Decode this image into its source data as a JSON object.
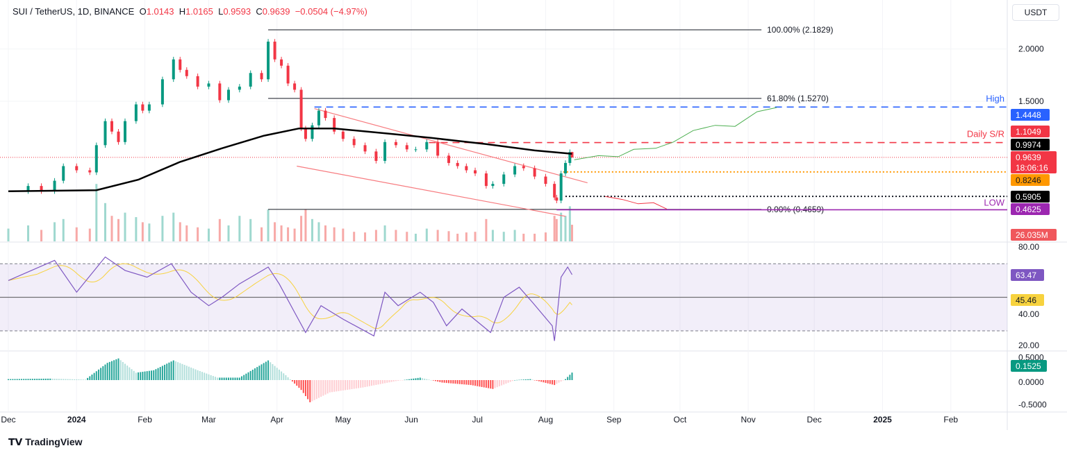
{
  "header": {
    "symbol": "SUI / TetherUS, 1D, BINANCE",
    "o_label": "O",
    "o": "1.0143",
    "h_label": "H",
    "h": "1.0165",
    "l_label": "L",
    "l": "0.9593",
    "c_label": "C",
    "c": "0.9639",
    "change": "−0.0504 (−4.97%)"
  },
  "currency_button": "USDT",
  "branding": "TradingView",
  "colors": {
    "up": "#089981",
    "down": "#f23645",
    "ma": "#000000",
    "rsi": "#7e57c2",
    "rsi_ma": "#f7d23e",
    "high": "#2962ff",
    "low": "#9c27b0",
    "sr": "#f23645",
    "orange": "#ff9800"
  },
  "chart_data": {
    "type": "candlestick",
    "price_scale": "linear",
    "grid": true,
    "dates": [
      "2023-12-01",
      "2023-12-10",
      "2023-12-16",
      "2023-12-22",
      "2023-12-26",
      "2024-01-01",
      "2024-01-07",
      "2024-01-10",
      "2024-01-14",
      "2024-01-17",
      "2024-01-20",
      "2024-01-23",
      "2024-01-28",
      "2024-01-31",
      "2024-02-03",
      "2024-02-09",
      "2024-02-14",
      "2024-02-17",
      "2024-02-20",
      "2024-02-25",
      "2024-03-01",
      "2024-03-06",
      "2024-03-10",
      "2024-03-15",
      "2024-03-20",
      "2024-03-25",
      "2024-03-28",
      "2024-03-31",
      "2024-04-03",
      "2024-04-06",
      "2024-04-09",
      "2024-04-12",
      "2024-04-14",
      "2024-04-17",
      "2024-04-20",
      "2024-04-23",
      "2024-04-27",
      "2024-05-01",
      "2024-05-06",
      "2024-05-11",
      "2024-05-16",
      "2024-05-20",
      "2024-05-25",
      "2024-05-30",
      "2024-06-03",
      "2024-06-08",
      "2024-06-13",
      "2024-06-18",
      "2024-06-22",
      "2024-06-26",
      "2024-06-30",
      "2024-07-05",
      "2024-07-08",
      "2024-07-13",
      "2024-07-18",
      "2024-07-22",
      "2024-07-27",
      "2024-08-01",
      "2024-08-05",
      "2024-08-06",
      "2024-08-08",
      "2024-08-10",
      "2024-08-12",
      "2024-08-13"
    ],
    "close": [
      0.64,
      0.69,
      0.64,
      0.74,
      0.88,
      0.84,
      0.82,
      1.08,
      1.31,
      1.21,
      1.11,
      1.31,
      1.47,
      1.41,
      1.47,
      1.71,
      1.9,
      1.8,
      1.74,
      1.64,
      1.67,
      1.51,
      1.61,
      1.64,
      1.77,
      1.71,
      2.07,
      1.9,
      1.84,
      1.67,
      1.61,
      1.24,
      1.14,
      1.27,
      1.41,
      1.34,
      1.21,
      1.14,
      1.08,
      1.02,
      0.93,
      1.11,
      1.08,
      1.04,
      1.04,
      1.11,
      0.98,
      0.91,
      0.88,
      0.84,
      0.81,
      0.69,
      0.71,
      0.8,
      0.88,
      0.86,
      0.78,
      0.71,
      0.58,
      0.55,
      0.81,
      0.91,
      1.0143,
      0.9639
    ],
    "last_candle": {
      "open": 1.0143,
      "high": 1.0165,
      "low": 0.9593,
      "close": 0.9639
    },
    "volume_m": [
      20,
      25,
      18,
      30,
      35,
      22,
      20,
      90,
      60,
      40,
      35,
      45,
      38,
      30,
      28,
      40,
      45,
      30,
      25,
      22,
      20,
      35,
      25,
      40,
      35,
      22,
      50,
      30,
      25,
      22,
      20,
      40,
      50,
      35,
      30,
      25,
      22,
      20,
      15,
      14,
      18,
      25,
      18,
      15,
      12,
      20,
      18,
      16,
      12,
      14,
      15,
      35,
      18,
      15,
      18,
      12,
      12,
      14,
      40,
      35,
      45,
      40,
      55,
      26.035
    ],
    "ma200": {
      "dates": [
        "2023-12-01",
        "2024-01-10",
        "2024-01-29",
        "2024-02-17",
        "2024-03-07",
        "2024-03-26",
        "2024-04-11",
        "2024-04-27",
        "2024-05-22",
        "2024-06-10",
        "2024-07-05",
        "2024-07-27",
        "2024-08-13"
      ],
      "values": [
        0.64,
        0.65,
        0.75,
        0.92,
        1.05,
        1.17,
        1.24,
        1.24,
        1.19,
        1.15,
        1.09,
        1.03,
        0.9974
      ]
    },
    "fib": [
      {
        "label": "100.00% (2.1829)",
        "price": 2.1829
      },
      {
        "label": "61.80% (1.5270)",
        "price": 1.527
      },
      {
        "label": "0.00% (0.4659)",
        "price": 0.4659
      }
    ],
    "fib_start": "2024-03-28",
    "fib_end": "2024-11-07",
    "levels": [
      {
        "name": "high",
        "label": "High",
        "price": 1.4448,
        "from": "2024-04-18",
        "style": "dashed",
        "color": "#2962ff"
      },
      {
        "name": "daily-sr",
        "label": "Daily S/R",
        "price": 1.1049,
        "from": "2024-06-09",
        "style": "dashed",
        "color": "#f23645"
      },
      {
        "name": "orange-dotted",
        "label": "",
        "price": 0.8246,
        "from": "2024-08-09",
        "style": "dotted",
        "color": "#ff9800"
      },
      {
        "name": "black-dotted",
        "label": "",
        "price": 0.5905,
        "from": "2024-08-10",
        "style": "dotted",
        "color": "#131722"
      },
      {
        "name": "low",
        "label": "LOW",
        "price": 0.4625,
        "from": "2024-08-06",
        "style": "solid",
        "color": "#9c27b0"
      }
    ],
    "channel": {
      "upper": [
        [
          "2024-04-18",
          1.43
        ],
        [
          "2024-08-20",
          0.72
        ]
      ],
      "lower": [
        [
          "2024-04-10",
          0.88
        ],
        [
          "2024-08-10",
          0.4
        ]
      ]
    },
    "projection_up": [
      [
        "2024-08-14",
        0.94
      ],
      [
        "2024-08-25",
        0.98
      ],
      [
        "2024-09-03",
        0.97
      ],
      [
        "2024-09-10",
        1.04
      ],
      [
        "2024-09-20",
        1.05
      ],
      [
        "2024-09-28",
        1.11
      ],
      [
        "2024-10-07",
        1.22
      ],
      [
        "2024-10-17",
        1.27
      ],
      [
        "2024-10-26",
        1.26
      ],
      [
        "2024-11-05",
        1.4
      ],
      [
        "2024-11-14",
        1.44
      ]
    ],
    "projection_down": [
      [
        "2024-08-28",
        0.59
      ],
      [
        "2024-09-05",
        0.56
      ],
      [
        "2024-09-12",
        0.52
      ],
      [
        "2024-09-19",
        0.53
      ],
      [
        "2024-09-25",
        0.47
      ]
    ],
    "price_ticks": [
      "2.0000",
      "1.5000"
    ],
    "price_tick_values": [
      2.0,
      1.5
    ],
    "badges": [
      {
        "name": "high-badge",
        "text": "1.4448",
        "bg": "#2962ff",
        "fg": "#ffffff"
      },
      {
        "name": "sr-badge",
        "text": "1.1049",
        "bg": "#f23645",
        "fg": "#ffffff"
      },
      {
        "name": "ma-badge",
        "text": "0.9974",
        "bg": "#000000",
        "fg": "#ffffff"
      },
      {
        "name": "last-price-badge",
        "text": "0.9639",
        "sub": "18:06:16",
        "bg": "#f23645",
        "fg": "#ffffff"
      },
      {
        "name": "orange-badge",
        "text": "0.8246",
        "bg": "#ff9800",
        "fg": "#131722"
      },
      {
        "name": "black-badge",
        "text": "0.5905",
        "bg": "#000000",
        "fg": "#ffffff"
      },
      {
        "name": "low-badge",
        "text": "0.4625",
        "bg": "#9c27b0",
        "fg": "#ffffff"
      },
      {
        "name": "volume-badge",
        "text": "26.035M",
        "bg": "#f0575c",
        "fg": "#ffffff"
      }
    ],
    "rsi": {
      "dates": [
        "2023-12-01",
        "2023-12-22",
        "2024-01-01",
        "2024-01-14",
        "2024-01-23",
        "2024-02-02",
        "2024-02-13",
        "2024-02-22",
        "2024-03-01",
        "2024-03-07",
        "2024-03-15",
        "2024-03-28",
        "2024-04-02",
        "2024-04-09",
        "2024-04-14",
        "2024-04-21",
        "2024-05-01",
        "2024-05-15",
        "2024-05-20",
        "2024-05-26",
        "2024-06-05",
        "2024-06-11",
        "2024-06-17",
        "2024-06-24",
        "2024-07-07",
        "2024-07-13",
        "2024-07-20",
        "2024-07-26",
        "2024-08-04",
        "2024-08-05",
        "2024-08-08",
        "2024-08-11",
        "2024-08-13"
      ],
      "values": [
        60,
        72,
        53,
        74,
        66,
        62,
        70,
        53,
        45,
        50,
        58,
        68,
        58,
        41,
        29,
        45,
        37,
        27,
        53,
        45,
        53,
        47,
        33,
        43,
        29,
        50,
        56,
        47,
        33,
        24,
        62,
        68,
        63.47
      ],
      "ticks": [
        "80.00",
        "60.00",
        "40.00",
        "20.00"
      ],
      "tick_values": [
        80,
        60,
        40,
        20
      ],
      "band": [
        30,
        70
      ],
      "mid": 50,
      "last": "63.47",
      "ma_last": "45.46"
    },
    "macd_hist": {
      "dates": [
        "2023-12-01",
        "2023-12-20",
        "2024-01-05",
        "2024-01-15",
        "2024-01-20",
        "2024-01-28",
        "2024-02-05",
        "2024-02-14",
        "2024-02-25",
        "2024-03-05",
        "2024-03-15",
        "2024-03-28",
        "2024-04-05",
        "2024-04-12",
        "2024-04-16",
        "2024-04-25",
        "2024-05-10",
        "2024-05-25",
        "2024-06-05",
        "2024-06-15",
        "2024-06-28",
        "2024-07-08",
        "2024-07-18",
        "2024-07-25",
        "2024-08-05",
        "2024-08-10",
        "2024-08-13"
      ],
      "values": [
        0.02,
        0.03,
        0.01,
        0.35,
        0.44,
        0.15,
        0.2,
        0.4,
        0.2,
        0.05,
        0.05,
        0.4,
        0.1,
        -0.2,
        -0.45,
        -0.25,
        -0.15,
        -0.02,
        0.05,
        -0.05,
        -0.1,
        -0.18,
        0.0,
        0.02,
        -0.1,
        0.02,
        0.1525
      ],
      "ticks": [
        "0.5000",
        "0.0000",
        "-0.5000"
      ],
      "tick_values": [
        0.5,
        0,
        -0.5
      ],
      "last": "0.1525"
    },
    "time_ticks": [
      {
        "label": "Dec",
        "date": "2023-12-01"
      },
      {
        "label": "2024",
        "date": "2024-01-01"
      },
      {
        "label": "Feb",
        "date": "2024-02-01"
      },
      {
        "label": "Mar",
        "date": "2024-03-01"
      },
      {
        "label": "Apr",
        "date": "2024-04-01"
      },
      {
        "label": "May",
        "date": "2024-05-01"
      },
      {
        "label": "Jun",
        "date": "2024-06-01"
      },
      {
        "label": "Jul",
        "date": "2024-07-01"
      },
      {
        "label": "Aug",
        "date": "2024-08-01"
      },
      {
        "label": "Sep",
        "date": "2024-09-01"
      },
      {
        "label": "Oct",
        "date": "2024-10-01"
      },
      {
        "label": "Nov",
        "date": "2024-11-01"
      },
      {
        "label": "Dec",
        "date": "2024-12-01"
      },
      {
        "label": "2025",
        "date": "2025-01-01"
      },
      {
        "label": "Feb",
        "date": "2025-02-01"
      }
    ]
  }
}
